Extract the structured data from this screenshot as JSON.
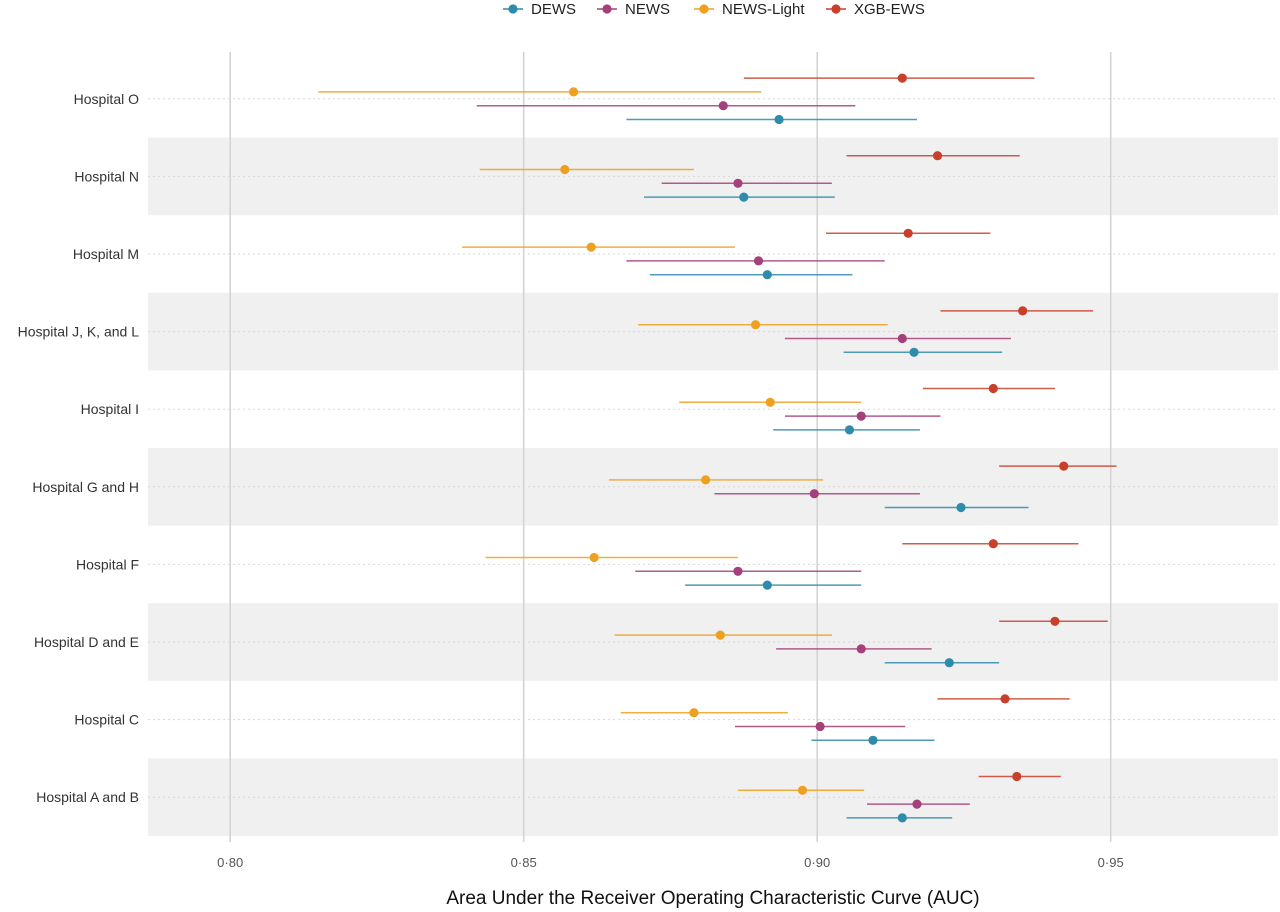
{
  "chart_data": {
    "type": "forest",
    "xlabel": "Area Under the Receiver Operating Characteristic Curve (AUC)",
    "xlim": [
      0.786,
      0.9785
    ],
    "x_ticks": [
      0.8,
      0.85,
      0.9,
      0.95
    ],
    "x_tick_labels": [
      "0·80",
      "0·85",
      "0·90",
      "0·95"
    ],
    "legend_position": "top",
    "grid": true,
    "categories": [
      "Hospital O",
      "Hospital N",
      "Hospital M",
      "Hospital J, K, and L",
      "Hospital I",
      "Hospital G and H",
      "Hospital F",
      "Hospital D and E",
      "Hospital C",
      "Hospital A and B"
    ],
    "series": [
      {
        "name": "DEWS",
        "color": "#2E8BAA",
        "values": [
          0.8935,
          0.8875,
          0.8915,
          0.9165,
          0.9055,
          0.9245,
          0.8915,
          0.9225,
          0.9095,
          0.9145
        ],
        "ci_low": [
          0.8675,
          0.8705,
          0.8715,
          0.9045,
          0.8925,
          0.9115,
          0.8775,
          0.9115,
          0.899,
          0.905
        ],
        "ci_high": [
          0.917,
          0.903,
          0.906,
          0.9315,
          0.9175,
          0.936,
          0.9075,
          0.931,
          0.92,
          0.923
        ]
      },
      {
        "name": "NEWS",
        "color": "#A4407A",
        "values": [
          0.884,
          0.8865,
          0.89,
          0.9145,
          0.9075,
          0.8995,
          0.8865,
          0.9075,
          0.9005,
          0.917
        ],
        "ci_low": [
          0.842,
          0.8735,
          0.8675,
          0.8945,
          0.8945,
          0.8825,
          0.869,
          0.893,
          0.886,
          0.9085
        ],
        "ci_high": [
          0.9065,
          0.9025,
          0.9115,
          0.933,
          0.921,
          0.9175,
          0.9075,
          0.9195,
          0.915,
          0.926
        ]
      },
      {
        "name": "NEWS-Light",
        "color": "#F0A020",
        "values": [
          0.8585,
          0.857,
          0.8615,
          0.8895,
          0.892,
          0.881,
          0.862,
          0.8835,
          0.879,
          0.8975
        ],
        "ci_low": [
          0.815,
          0.8425,
          0.8395,
          0.8695,
          0.8765,
          0.8645,
          0.8435,
          0.8655,
          0.8665,
          0.8865
        ],
        "ci_high": [
          0.8905,
          0.879,
          0.886,
          0.912,
          0.9075,
          0.901,
          0.8865,
          0.9025,
          0.895,
          0.908
        ]
      },
      {
        "name": "XGB-EWS",
        "color": "#C8402A",
        "values": [
          0.9145,
          0.9205,
          0.9155,
          0.935,
          0.93,
          0.942,
          0.93,
          0.9405,
          0.932,
          0.934
        ],
        "ci_low": [
          0.8875,
          0.905,
          0.9015,
          0.921,
          0.918,
          0.931,
          0.9145,
          0.931,
          0.9205,
          0.9275
        ],
        "ci_high": [
          0.937,
          0.9345,
          0.9295,
          0.947,
          0.9405,
          0.951,
          0.9445,
          0.9495,
          0.943,
          0.9415
        ]
      }
    ]
  }
}
